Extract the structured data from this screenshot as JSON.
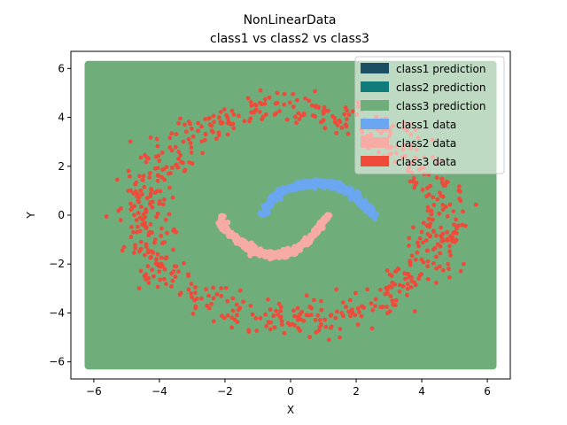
{
  "chart_data": {
    "type": "scatter",
    "title": "NonLinearData",
    "subtitle": "class1 vs  class2 vs  class3",
    "xlabel": "X",
    "ylabel": "Y",
    "xlim": [
      -6.7,
      6.7
    ],
    "ylim": [
      -6.7,
      6.7
    ],
    "x_ticks": [
      -6,
      -4,
      -2,
      0,
      2,
      4,
      6
    ],
    "y_ticks": [
      -6,
      -4,
      -2,
      0,
      2,
      4,
      6
    ],
    "x_tick_labels": [
      "−6",
      "−4",
      "−2",
      "0",
      "2",
      "4",
      "6"
    ],
    "y_tick_labels": [
      "−6",
      "−4",
      "−2",
      "0",
      "2",
      "4",
      "6"
    ],
    "grid": false,
    "legend_position": "top-right",
    "prediction_region": {
      "class": "class3 prediction",
      "x_range": [
        -6.2,
        6.2
      ],
      "y_range": [
        -6.2,
        6.2
      ]
    },
    "legend": [
      {
        "label": "class1 prediction",
        "color": "#1d4f64"
      },
      {
        "label": "class2 prediction",
        "color": "#0f7b7b"
      },
      {
        "label": "class3 prediction",
        "color": "#6fae7b"
      },
      {
        "label": "class1 data",
        "color": "#6aa7f0"
      },
      {
        "label": "class2 data",
        "color": "#f7aba5"
      },
      {
        "label": "class3 data",
        "color": "#f04a3a"
      }
    ],
    "series": [
      {
        "name": "class1 data",
        "color": "#6aa7f0",
        "shape": "upper half-ring centered at (0.8, -0.2), radius ≈ 1.55",
        "x": [
          -0.8,
          -0.75,
          -0.7,
          -0.6,
          -0.5,
          -0.4,
          -0.3,
          -0.2,
          -0.1,
          0.0,
          0.1,
          0.2,
          0.3,
          0.4,
          0.5,
          0.6,
          0.7,
          0.8,
          0.9,
          1.0,
          1.1,
          1.2,
          1.3,
          1.4,
          1.5,
          1.6,
          1.7,
          1.8,
          1.9,
          2.0,
          2.1,
          2.2,
          2.3,
          2.4,
          2.5,
          2.55
        ],
        "y": [
          0.0,
          0.25,
          0.45,
          0.6,
          0.75,
          0.85,
          0.95,
          1.02,
          1.08,
          1.13,
          1.17,
          1.2,
          1.23,
          1.25,
          1.27,
          1.28,
          1.29,
          1.3,
          1.29,
          1.28,
          1.27,
          1.25,
          1.23,
          1.2,
          1.15,
          1.1,
          1.02,
          0.95,
          0.85,
          0.75,
          0.63,
          0.5,
          0.37,
          0.22,
          0.05,
          -0.05
        ]
      },
      {
        "name": "class2 data",
        "color": "#f7aba5",
        "shape": "lower half-ring centered at (-0.5, 0.0), radius ≈ 1.55",
        "x": [
          -2.15,
          -2.1,
          -2.0,
          -1.9,
          -1.8,
          -1.7,
          -1.6,
          -1.5,
          -1.4,
          -1.3,
          -1.2,
          -1.1,
          -1.0,
          -0.9,
          -0.8,
          -0.7,
          -0.6,
          -0.5,
          -0.4,
          -0.3,
          -0.2,
          -0.1,
          0.0,
          0.1,
          0.2,
          0.3,
          0.4,
          0.5,
          0.6,
          0.7,
          0.8,
          0.9,
          1.0,
          1.1,
          1.2
        ],
        "y": [
          -0.1,
          -0.3,
          -0.5,
          -0.65,
          -0.8,
          -0.93,
          -1.05,
          -1.15,
          -1.24,
          -1.32,
          -1.4,
          -1.45,
          -1.5,
          -1.54,
          -1.57,
          -1.59,
          -1.6,
          -1.61,
          -1.6,
          -1.59,
          -1.57,
          -1.53,
          -1.49,
          -1.44,
          -1.37,
          -1.29,
          -1.19,
          -1.07,
          -0.94,
          -0.8,
          -0.64,
          -0.46,
          -0.28,
          -0.08,
          0.05
        ]
      },
      {
        "name": "class3 data",
        "color": "#f04a3a",
        "shape": "noisy ring centered at (0, 0), radius ≈ 4.4 ± 0.7",
        "x": [
          4.4,
          4.25,
          3.8,
          3.1,
          2.2,
          1.15,
          0.0,
          -1.15,
          -2.2,
          -3.1,
          -3.8,
          -4.25,
          -4.4,
          -4.25,
          -3.8,
          -3.1,
          -2.2,
          -1.15,
          0.0,
          1.15,
          2.2,
          3.1,
          3.8,
          4.25
        ],
        "y": [
          0.0,
          1.15,
          2.2,
          3.1,
          3.8,
          4.25,
          4.4,
          4.25,
          3.8,
          3.1,
          2.2,
          1.15,
          0.0,
          -1.15,
          -2.2,
          -3.1,
          -3.8,
          -4.25,
          -4.4,
          -4.25,
          -3.8,
          -3.1,
          -2.2,
          -1.15
        ]
      }
    ]
  }
}
